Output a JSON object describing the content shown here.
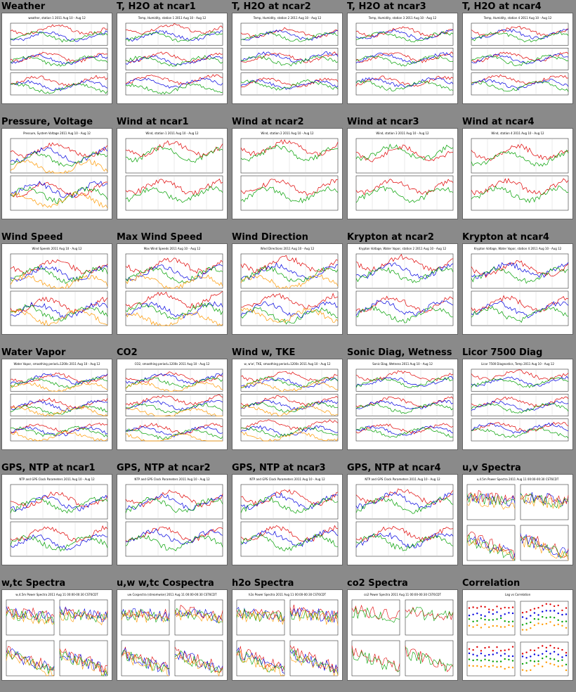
{
  "panels": [
    {
      "title": "Weather",
      "caption": "weather, station 1 2011 Aug 10 - Aug 12",
      "kind": "ts3",
      "colors": [
        "#e00000",
        "#0000e0",
        "#00a000"
      ]
    },
    {
      "title": "T, H2O at ncar1",
      "caption": "Temp, Humidity, station 1 2011 Aug 10 - Aug 12",
      "kind": "ts3",
      "colors": [
        "#e00000",
        "#0000e0",
        "#00a000"
      ]
    },
    {
      "title": "T, H2O at ncar2",
      "caption": "Temp, Humidity, station 2 2011 Aug 10 - Aug 12",
      "kind": "ts3",
      "colors": [
        "#e00000",
        "#0000e0",
        "#00a000"
      ]
    },
    {
      "title": "T, H2O at ncar3",
      "caption": "Temp, Humidity, station 3 2011 Aug 10 - Aug 12",
      "kind": "ts3",
      "colors": [
        "#e00000",
        "#0000e0",
        "#00a000"
      ]
    },
    {
      "title": "T, H2O at ncar4",
      "caption": "Temp, Humidity, station 4 2011 Aug 10 - Aug 12",
      "kind": "ts3",
      "colors": [
        "#e00000",
        "#0000e0",
        "#00a000"
      ]
    },
    {
      "title": "Pressure, Voltage",
      "caption": "Pressure, System Voltage 2011 Aug 10 - Aug 12",
      "kind": "ts2",
      "colors": [
        "#e00000",
        "#0000e0",
        "#00a000",
        "#ff9900"
      ]
    },
    {
      "title": "Wind at ncar1",
      "caption": "Wind, station 1 2011 Aug 10 - Aug 12",
      "kind": "ts2",
      "colors": [
        "#e00000",
        "#00a000"
      ]
    },
    {
      "title": "Wind at ncar2",
      "caption": "Wind, station 2 2011 Aug 10 - Aug 12",
      "kind": "ts2",
      "colors": [
        "#e00000",
        "#00a000"
      ]
    },
    {
      "title": "Wind at ncar3",
      "caption": "Wind, station 3 2011 Aug 10 - Aug 12",
      "kind": "ts2",
      "colors": [
        "#e00000",
        "#00a000"
      ]
    },
    {
      "title": "Wind at ncar4",
      "caption": "Wind, station 4 2011 Aug 10 - Aug 12",
      "kind": "ts2",
      "colors": [
        "#e00000",
        "#00a000"
      ]
    },
    {
      "title": "Wind Speed",
      "caption": "Wind Speeds 2011 Aug 10 - Aug 12",
      "kind": "ts2",
      "colors": [
        "#e00000",
        "#0000e0",
        "#00a000",
        "#ff9900"
      ]
    },
    {
      "title": "Max Wind Speed",
      "caption": "Max Wind Speeds 2011 Aug 10 - Aug 12",
      "kind": "ts2",
      "colors": [
        "#e00000",
        "#0000e0",
        "#00a000",
        "#ff9900"
      ]
    },
    {
      "title": "Wind Direction",
      "caption": "Wind Directions 2011 Aug 10 - Aug 12",
      "kind": "ts2",
      "colors": [
        "#e00000",
        "#0000e0",
        "#00a000",
        "#ff9900"
      ]
    },
    {
      "title": "Krypton at ncar2",
      "caption": "Krypton Voltage, Water Vapor, station 2 2011 Aug 10 - Aug 12",
      "kind": "ts2",
      "colors": [
        "#e00000",
        "#0000e0",
        "#00a000"
      ]
    },
    {
      "title": "Krypton at ncar4",
      "caption": "Krypton Voltage, Water Vapor, station 4 2011 Aug 10 - Aug 12",
      "kind": "ts2",
      "colors": [
        "#e00000",
        "#0000e0",
        "#00a000"
      ]
    },
    {
      "title": "Water Vapor",
      "caption": "Water Vapor, smoothing period=1200s 2011 Aug 10 - Aug 12",
      "kind": "ts3",
      "colors": [
        "#e00000",
        "#0000e0",
        "#00a000",
        "#ff9900"
      ]
    },
    {
      "title": "CO2",
      "caption": "CO2, smoothing period=1200s 2011 Aug 10 - Aug 12",
      "kind": "ts3",
      "colors": [
        "#e00000",
        "#0000e0",
        "#00a000",
        "#ff9900"
      ]
    },
    {
      "title": "Wind w, TKE",
      "caption": "w, w'w', TKE, smoothing period=1200s 2011 Aug 10 - Aug 12",
      "kind": "ts3",
      "colors": [
        "#e00000",
        "#0000e0",
        "#00a000",
        "#ff9900"
      ]
    },
    {
      "title": "Sonic Diag, Wetness",
      "caption": "Sonic Diag, Wetness 2011 Aug 10 - Aug 12",
      "kind": "ts3",
      "colors": [
        "#e00000",
        "#0000e0",
        "#00a000"
      ]
    },
    {
      "title": "Licor 7500 Diag",
      "caption": "Licor 7500 Diagnostics, Temp 2011 Aug 10 - Aug 12",
      "kind": "ts3",
      "colors": [
        "#e00000",
        "#0000e0",
        "#00a000"
      ]
    },
    {
      "title": "GPS, NTP at ncar1",
      "caption": "NTP and GPS Clock Parameters 2011 Aug 10 - Aug 12",
      "kind": "ts2",
      "colors": [
        "#e00000",
        "#0000e0",
        "#00a000"
      ]
    },
    {
      "title": "GPS, NTP at ncar2",
      "caption": "NTP and GPS Clock Parameters 2011 Aug 10 - Aug 12",
      "kind": "ts2",
      "colors": [
        "#e00000",
        "#0000e0",
        "#00a000"
      ]
    },
    {
      "title": "GPS, NTP at ncar3",
      "caption": "NTP and GPS Clock Parameters 2011 Aug 10 - Aug 12",
      "kind": "ts2",
      "colors": [
        "#e00000",
        "#0000e0",
        "#00a000"
      ]
    },
    {
      "title": "GPS, NTP at ncar4",
      "caption": "NTP and GPS Clock Parameters 2011 Aug 10 - Aug 12",
      "kind": "ts2",
      "colors": [
        "#e00000",
        "#0000e0",
        "#00a000"
      ]
    },
    {
      "title": "u,v Spectra",
      "caption": "u,4.5m Power Spectra 2011 Aug 11 00:00-00:30 CST6CDT",
      "kind": "spec",
      "colors": [
        "#e00000",
        "#0000e0",
        "#00a000",
        "#ff9900"
      ]
    },
    {
      "title": "w,tc Spectra",
      "caption": "w,4.5m Power Spectra 2011 Aug 11 00:00-00:30 CST6CDT",
      "kind": "spec",
      "colors": [
        "#e00000",
        "#0000e0",
        "#00a000",
        "#ff9900"
      ]
    },
    {
      "title": "u,w w,tc Cospectra",
      "caption": "uw Cospectra (streamwise) 2011 Aug 11 00:00-00:30 CST6CDT",
      "kind": "spec",
      "colors": [
        "#e00000",
        "#0000e0",
        "#00a000",
        "#ff9900"
      ]
    },
    {
      "title": "h2o Spectra",
      "caption": "h2o Power Spectra 2011 Aug 11 00:00-00:30 CST6CDT",
      "kind": "spec",
      "colors": [
        "#e00000",
        "#0000e0",
        "#00a000",
        "#ff9900"
      ]
    },
    {
      "title": "co2 Spectra",
      "caption": "co2 Power Spectra 2011 Aug 11 00:00-00:30 CST6CDT",
      "kind": "spec",
      "colors": [
        "#e00000",
        "#00a000"
      ]
    },
    {
      "title": "Correlation",
      "caption": "Lag vs Correlation",
      "kind": "corr",
      "colors": [
        "#e00000",
        "#0000e0",
        "#00a000",
        "#ff9900"
      ]
    }
  ]
}
